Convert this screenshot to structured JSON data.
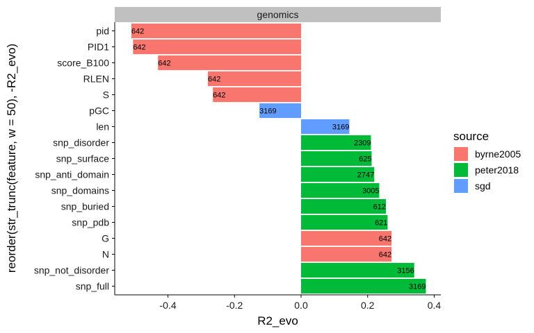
{
  "chart_data": {
    "type": "bar",
    "orientation": "horizontal",
    "facet_title": "genomics",
    "xlabel": "R2_evo",
    "ylabel": "reorder(str_trunc(feature, w = 50), -R2_evo)",
    "xlim": [
      -0.56,
      0.42
    ],
    "xticks": [
      -0.4,
      -0.2,
      0.0,
      0.2,
      0.4
    ],
    "xtick_labels": [
      "-0.4",
      "-0.2",
      "0.0",
      "0.2",
      "0.4"
    ],
    "grid": false,
    "legend": {
      "title": "source",
      "position": "right",
      "entries": [
        {
          "name": "byrne2005",
          "color": "#F8766D"
        },
        {
          "name": "peter2018",
          "color": "#00BA38"
        },
        {
          "name": "sgd",
          "color": "#619CFF"
        }
      ]
    },
    "bars": [
      {
        "feature": "pid",
        "value": -0.51,
        "source": "byrne2005",
        "label": "642"
      },
      {
        "feature": "PID1",
        "value": -0.505,
        "source": "byrne2005",
        "label": "642"
      },
      {
        "feature": "score_B100",
        "value": -0.43,
        "source": "byrne2005",
        "label": "642"
      },
      {
        "feature": "RLEN",
        "value": -0.28,
        "source": "byrne2005",
        "label": "642"
      },
      {
        "feature": "S",
        "value": -0.265,
        "source": "byrne2005",
        "label": "642"
      },
      {
        "feature": "pGC",
        "value": -0.125,
        "source": "sgd",
        "label": "3169"
      },
      {
        "feature": "len",
        "value": 0.145,
        "source": "sgd",
        "label": "3169"
      },
      {
        "feature": "snp_disorder",
        "value": 0.21,
        "source": "peter2018",
        "label": "2309"
      },
      {
        "feature": "snp_surface",
        "value": 0.212,
        "source": "peter2018",
        "label": "625"
      },
      {
        "feature": "snp_anti_domain",
        "value": 0.22,
        "source": "peter2018",
        "label": "2747"
      },
      {
        "feature": "snp_domains",
        "value": 0.235,
        "source": "peter2018",
        "label": "3005"
      },
      {
        "feature": "snp_buried",
        "value": 0.255,
        "source": "peter2018",
        "label": "612"
      },
      {
        "feature": "snp_pdb",
        "value": 0.26,
        "source": "peter2018",
        "label": "621"
      },
      {
        "feature": "G",
        "value": 0.272,
        "source": "byrne2005",
        "label": "642"
      },
      {
        "feature": "N",
        "value": 0.272,
        "source": "byrne2005",
        "label": "642"
      },
      {
        "feature": "snp_not_disorder",
        "value": 0.34,
        "source": "peter2018",
        "label": "3156"
      },
      {
        "feature": "snp_full",
        "value": 0.375,
        "source": "peter2018",
        "label": "3169"
      }
    ]
  }
}
